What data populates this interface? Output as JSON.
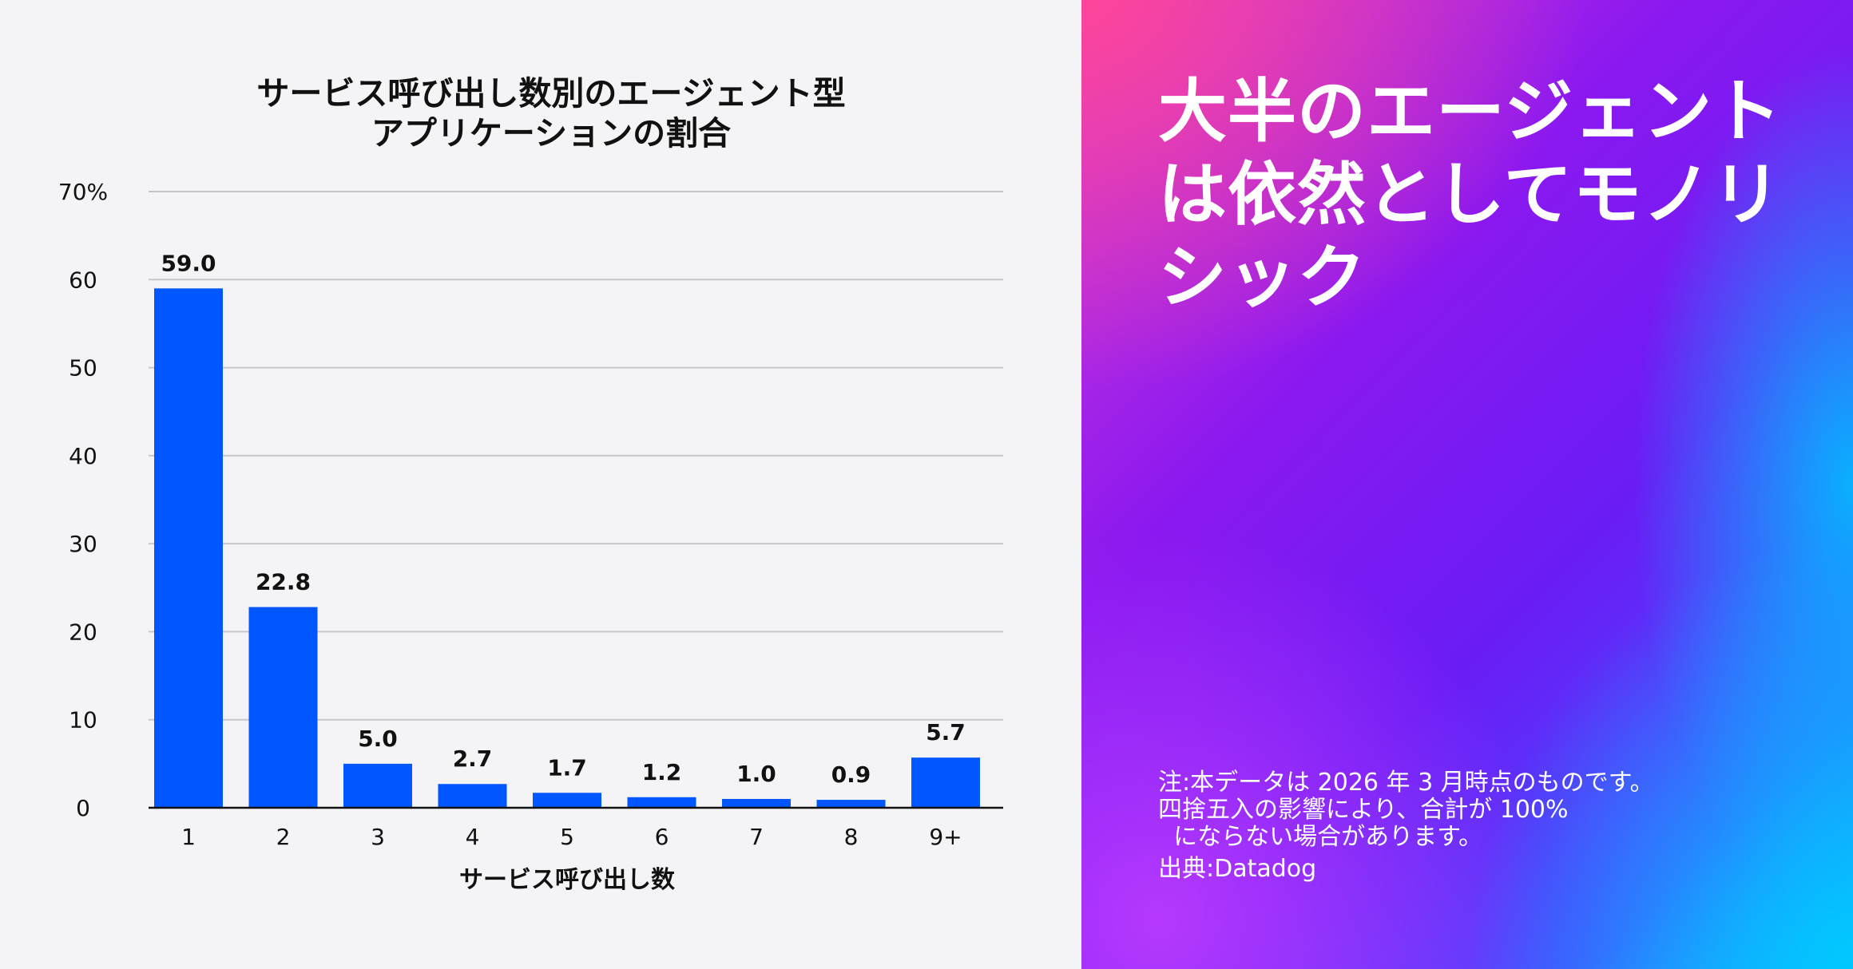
{
  "chart_data": {
    "type": "bar",
    "title": [
      "サービス呼び出し数別のエージェント型",
      "アプリケーションの割合"
    ],
    "xlabel": "サービス呼び出し数",
    "ylabel": "",
    "categories": [
      "1",
      "2",
      "3",
      "4",
      "5",
      "6",
      "7",
      "8",
      "9+"
    ],
    "values": [
      59.0,
      22.8,
      5.0,
      2.7,
      1.7,
      1.2,
      1.0,
      0.9,
      5.7
    ],
    "value_labels": [
      "59.0",
      "22.8",
      "5.0",
      "2.7",
      "1.7",
      "1.2",
      "1.0",
      "0.9",
      "5.7"
    ],
    "ylim": [
      0,
      70
    ],
    "yticks": [
      0,
      10,
      20,
      30,
      40,
      50,
      60,
      70
    ],
    "ytick_labels": [
      "0",
      "10",
      "20",
      "30",
      "40",
      "50",
      "60",
      "70%"
    ],
    "grid": true,
    "bar_color": "#0057ff",
    "grid_color": "#c8c8cc",
    "axis_color": "#111111"
  },
  "headline": [
    "大半のエージェント",
    "は依然としてモノリ",
    "シック"
  ],
  "notes": {
    "lines": [
      "注:本データは 2026 年 3 月時点のものです。",
      "四捨五入の影響により、合計が 100%",
      "  にならない場合があります。"
    ],
    "source": "出典:Datadog"
  }
}
